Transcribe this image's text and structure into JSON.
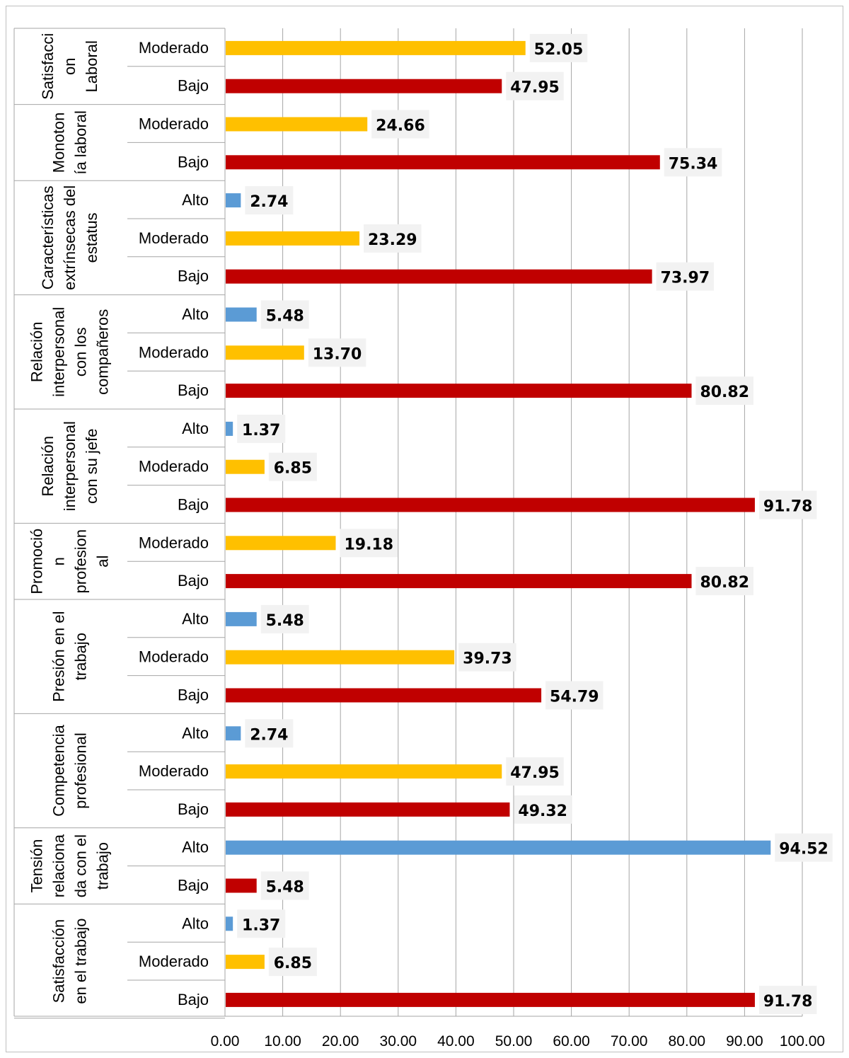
{
  "chart_data": {
    "type": "bar",
    "orientation": "horizontal",
    "xlim": [
      0,
      100
    ],
    "xticks": [
      "0.00",
      "10.00",
      "20.00",
      "30.00",
      "40.00",
      "50.00",
      "60.00",
      "70.00",
      "80.00",
      "90.00",
      "100.00"
    ],
    "grid": true,
    "colors": {
      "Alto": "#5B9BD5",
      "Moderado": "#FFC000",
      "Bajo": "#C00000",
      "label_box": "#F2F2F2",
      "grid": "#A6A6A6"
    },
    "groups": [
      {
        "label": [
          "Satisfacci",
          "on",
          "Laboral"
        ],
        "items": [
          {
            "category": "Moderado",
            "value": 52.05,
            "label": "52.05"
          },
          {
            "category": "Bajo",
            "value": 47.95,
            "label": "47.95"
          }
        ]
      },
      {
        "label": [
          "Monoton",
          "ía laboral"
        ],
        "items": [
          {
            "category": "Moderado",
            "value": 24.66,
            "label": "24.66"
          },
          {
            "category": "Bajo",
            "value": 75.34,
            "label": "75.34"
          }
        ]
      },
      {
        "label": [
          "Características",
          "extrínsecas del",
          "estatus"
        ],
        "items": [
          {
            "category": "Alto",
            "value": 2.74,
            "label": "2.74"
          },
          {
            "category": "Moderado",
            "value": 23.29,
            "label": "23.29"
          },
          {
            "category": "Bajo",
            "value": 73.97,
            "label": "73.97"
          }
        ]
      },
      {
        "label": [
          "Relación",
          "interpersonal",
          "con los",
          "compañeros"
        ],
        "items": [
          {
            "category": "Alto",
            "value": 5.48,
            "label": "5.48"
          },
          {
            "category": "Moderado",
            "value": 13.7,
            "label": "13.70"
          },
          {
            "category": "Bajo",
            "value": 80.82,
            "label": "80.82"
          }
        ]
      },
      {
        "label": [
          "Relación",
          "interpersonal",
          "con su jefe"
        ],
        "items": [
          {
            "category": "Alto",
            "value": 1.37,
            "label": "1.37"
          },
          {
            "category": "Moderado",
            "value": 6.85,
            "label": "6.85"
          },
          {
            "category": "Bajo",
            "value": 91.78,
            "label": "91.78"
          }
        ]
      },
      {
        "label": [
          "Promoció",
          "n",
          "profesion",
          "al"
        ],
        "items": [
          {
            "category": "Moderado",
            "value": 19.18,
            "label": "19.18"
          },
          {
            "category": "Bajo",
            "value": 80.82,
            "label": "80.82"
          }
        ]
      },
      {
        "label": [
          "Presión en el",
          "trabajo"
        ],
        "items": [
          {
            "category": "Alto",
            "value": 5.48,
            "label": "5.48"
          },
          {
            "category": "Moderado",
            "value": 39.73,
            "label": "39.73"
          },
          {
            "category": "Bajo",
            "value": 54.79,
            "label": "54.79"
          }
        ]
      },
      {
        "label": [
          "Competencia",
          "profesional"
        ],
        "items": [
          {
            "category": "Alto",
            "value": 2.74,
            "label": "2.74"
          },
          {
            "category": "Moderado",
            "value": 47.95,
            "label": "47.95"
          },
          {
            "category": "Bajo",
            "value": 49.32,
            "label": "49.32"
          }
        ]
      },
      {
        "label": [
          "Tensión",
          "relaciona",
          "da con el",
          "trabajo"
        ],
        "items": [
          {
            "category": "Alto",
            "value": 94.52,
            "label": "94.52"
          },
          {
            "category": "Bajo",
            "value": 5.48,
            "label": "5.48"
          }
        ]
      },
      {
        "label": [
          "Satisfacción",
          "en el trabajo"
        ],
        "items": [
          {
            "category": "Alto",
            "value": 1.37,
            "label": "1.37"
          },
          {
            "category": "Moderado",
            "value": 6.85,
            "label": "6.85"
          },
          {
            "category": "Bajo",
            "value": 91.78,
            "label": "91.78"
          }
        ]
      }
    ]
  }
}
